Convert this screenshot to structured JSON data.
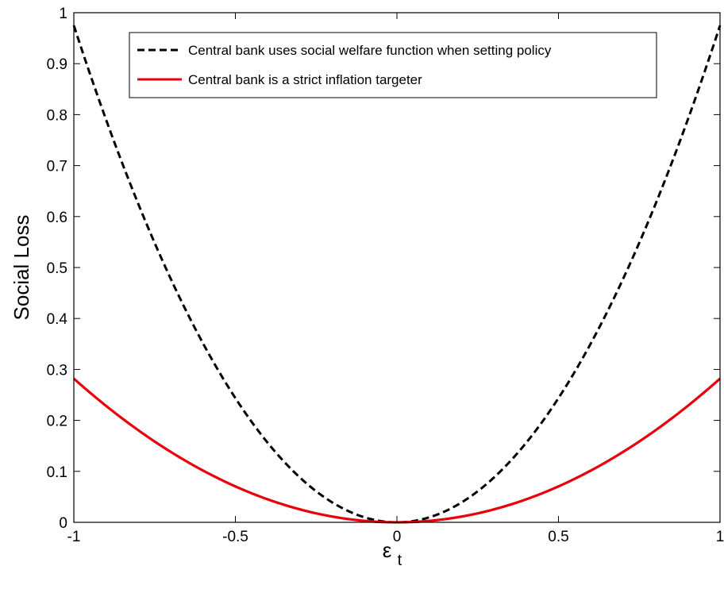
{
  "chart_data": {
    "type": "line",
    "title": "",
    "xlabel": "ε",
    "xlabel_subscript": "t",
    "ylabel": "Social Loss",
    "xlim": [
      -1,
      1
    ],
    "ylim": [
      0,
      1
    ],
    "xticks": [
      "-1",
      "-0.5",
      "0",
      "0.5",
      "1"
    ],
    "yticks": [
      "0",
      "0.1",
      "0.2",
      "0.3",
      "0.4",
      "0.5",
      "0.6",
      "0.7",
      "0.8",
      "0.9",
      "1"
    ],
    "grid": false,
    "legend_position": "top-right",
    "series": [
      {
        "name": "Central bank uses social welfare function when setting policy",
        "color": "#000000",
        "line_style": "dashed",
        "x": [
          -1,
          -0.9,
          -0.8,
          -0.7,
          -0.6,
          -0.5,
          -0.4,
          -0.3,
          -0.2,
          -0.1,
          0,
          0.1,
          0.2,
          0.3,
          0.4,
          0.5,
          0.6,
          0.7,
          0.8,
          0.9,
          1
        ],
        "y": [
          0.975,
          0.79,
          0.624,
          0.478,
          0.351,
          0.244,
          0.156,
          0.088,
          0.039,
          0.01,
          0,
          0.01,
          0.039,
          0.088,
          0.156,
          0.244,
          0.351,
          0.478,
          0.624,
          0.79,
          0.975
        ]
      },
      {
        "name": "Central bank is a strict inflation targeter",
        "color": "#e8000b",
        "line_style": "solid",
        "x": [
          -1,
          -0.9,
          -0.8,
          -0.7,
          -0.6,
          -0.5,
          -0.4,
          -0.3,
          -0.2,
          -0.1,
          0,
          0.1,
          0.2,
          0.3,
          0.4,
          0.5,
          0.6,
          0.7,
          0.8,
          0.9,
          1
        ],
        "y": [
          0.282,
          0.228,
          0.18,
          0.138,
          0.102,
          0.0705,
          0.045,
          0.025,
          0.011,
          0.003,
          0,
          0.003,
          0.011,
          0.025,
          0.045,
          0.0705,
          0.102,
          0.138,
          0.18,
          0.228,
          0.282
        ]
      }
    ]
  }
}
